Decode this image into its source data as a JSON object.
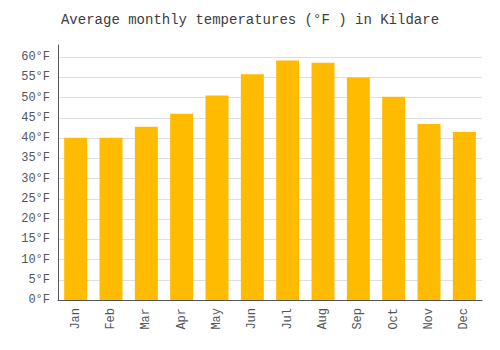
{
  "chart_data": {
    "type": "bar",
    "title": "Average monthly temperatures (°F ) in Kildare",
    "categories": [
      "Jan",
      "Feb",
      "Mar",
      "Apr",
      "May",
      "Jun",
      "Jul",
      "Aug",
      "Sep",
      "Oct",
      "Nov",
      "Dec"
    ],
    "values": [
      40.1,
      40.1,
      42.8,
      46.0,
      50.5,
      55.8,
      59.2,
      58.6,
      55.0,
      50.2,
      43.5,
      41.5
    ],
    "color": "#FFBB00",
    "ylim": [
      0,
      63
    ],
    "yticks": [
      {
        "value": 0,
        "label": "0°F"
      },
      {
        "value": 5,
        "label": "5°F"
      },
      {
        "value": 10,
        "label": "10°F"
      },
      {
        "value": 15,
        "label": "15°F"
      },
      {
        "value": 20,
        "label": "20°F"
      },
      {
        "value": 25,
        "label": "25°F"
      },
      {
        "value": 30,
        "label": "30°F"
      },
      {
        "value": 35,
        "label": "35°F"
      },
      {
        "value": 40,
        "label": "40°F"
      },
      {
        "value": 45,
        "label": "45°F"
      },
      {
        "value": 50,
        "label": "50°F"
      },
      {
        "value": 55,
        "label": "55°F"
      },
      {
        "value": 60,
        "label": "60°F"
      }
    ],
    "grid": true
  }
}
